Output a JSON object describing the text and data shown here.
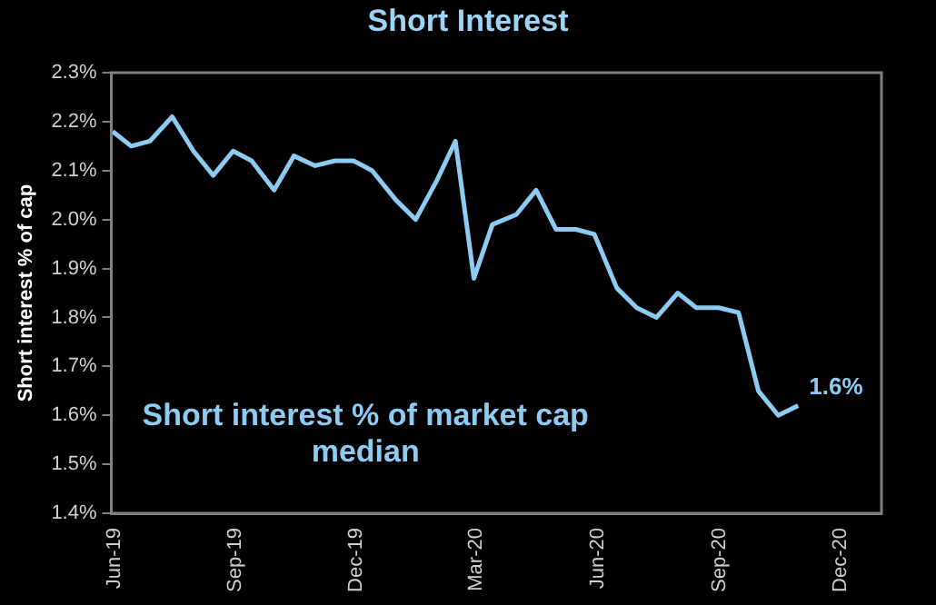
{
  "chart_data": {
    "type": "line",
    "title": "Short Interest",
    "ylabel": "Short interest % of cap",
    "x": [
      "2019-05-31",
      "2019-06-14",
      "2019-06-28",
      "2019-07-15",
      "2019-07-31",
      "2019-08-15",
      "2019-08-30",
      "2019-09-13",
      "2019-09-30",
      "2019-10-15",
      "2019-10-31",
      "2019-11-15",
      "2019-11-29",
      "2019-12-13",
      "2019-12-31",
      "2020-01-15",
      "2020-01-31",
      "2020-02-14",
      "2020-02-28",
      "2020-03-13",
      "2020-03-31",
      "2020-04-15",
      "2020-04-30",
      "2020-05-15",
      "2020-05-29",
      "2020-06-15",
      "2020-06-30",
      "2020-07-15",
      "2020-07-31",
      "2020-08-14",
      "2020-08-31",
      "2020-09-15",
      "2020-09-30",
      "2020-10-15",
      "2020-10-30"
    ],
    "series": [
      {
        "color": "#8ecbf2",
        "values": [
          2.18,
          2.15,
          2.16,
          2.21,
          2.14,
          2.09,
          2.14,
          2.12,
          2.06,
          2.13,
          2.11,
          2.12,
          2.12,
          2.1,
          2.04,
          2.0,
          2.08,
          2.16,
          1.88,
          1.99,
          2.01,
          2.06,
          1.98,
          1.98,
          1.97,
          1.86,
          1.82,
          1.8,
          1.85,
          1.82,
          1.82,
          1.81,
          1.65,
          1.6,
          1.62
        ]
      }
    ],
    "xlim": [
      "2019-05-30",
      "2021-01-01"
    ],
    "xticks": [
      {
        "value": "2019-06-01",
        "label": "Jun-19"
      },
      {
        "value": "2019-09-01",
        "label": "Sep-19"
      },
      {
        "value": "2019-12-01",
        "label": "Dec-19"
      },
      {
        "value": "2020-03-01",
        "label": "Mar-20"
      },
      {
        "value": "2020-06-01",
        "label": "Jun-20"
      },
      {
        "value": "2020-09-01",
        "label": "Sep-20"
      },
      {
        "value": "2020-12-01",
        "label": "Dec-20"
      }
    ],
    "ylim": [
      1.4,
      2.3
    ],
    "yticks": [
      {
        "value": 1.4,
        "label": "1.4%"
      },
      {
        "value": 1.5,
        "label": "1.5%"
      },
      {
        "value": 1.6,
        "label": "1.6%"
      },
      {
        "value": 1.7,
        "label": "1.7%"
      },
      {
        "value": 1.8,
        "label": "1.8%"
      },
      {
        "value": 1.9,
        "label": "1.9%"
      },
      {
        "value": 2.0,
        "label": "2.0%"
      },
      {
        "value": 2.1,
        "label": "2.1%"
      },
      {
        "value": 2.2,
        "label": "2.2%"
      },
      {
        "value": 2.3,
        "label": "2.3%"
      }
    ],
    "annotations": [
      "Short interest % of market cap",
      "median",
      {
        "text": "1.6%",
        "x": "2020-10-30",
        "y": 1.62
      }
    ],
    "grid": false,
    "legend": false,
    "marker": "none",
    "line_style": "solid"
  }
}
